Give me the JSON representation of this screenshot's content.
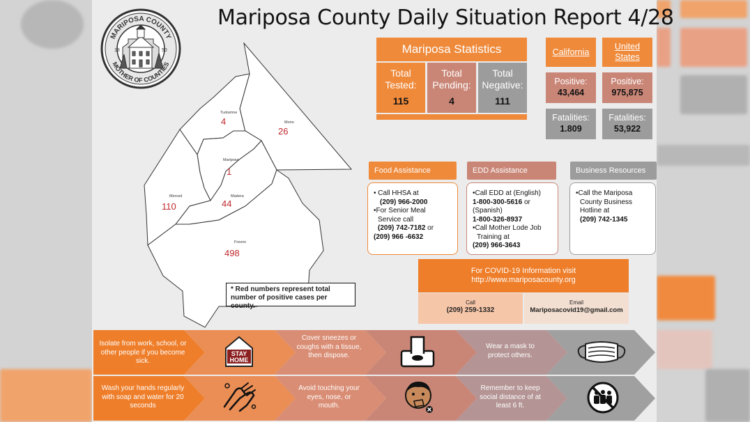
{
  "title": "Mariposa County Daily Situation Report 4/28",
  "seal": {
    "top_text": "MARIPOSA COUNTY",
    "bottom_text": "MOTHER OF COUNTIES",
    "year_left": "18",
    "year_right": "50"
  },
  "map": {
    "counties": [
      {
        "name": "Tuolumne",
        "count": "4"
      },
      {
        "name": "Mono",
        "count": "26"
      },
      {
        "name": "Mariposa",
        "count": "1"
      },
      {
        "name": "Merced",
        "count": "110"
      },
      {
        "name": "Madera",
        "count": "44"
      },
      {
        "name": "Fresno",
        "count": "498"
      }
    ],
    "note": "* Red numbers represent total number of  positive cases per county."
  },
  "mariposa_stats": {
    "heading": "Mariposa Statistics",
    "tested_label": "Total Tested:",
    "tested_value": "115",
    "pending_label": "Total Pending:",
    "pending_value": "4",
    "negative_label": "Total Negative:",
    "negative_value": "111"
  },
  "california": {
    "label": "California",
    "positive_label": "Positive:",
    "positive_value": "43,464",
    "fatalities_label": "Fatalities:",
    "fatalities_value": "1.809"
  },
  "united_states": {
    "label": "United States",
    "positive_label": "Positive:",
    "positive_value": "975,875",
    "fatalities_label": "Fatalities:",
    "fatalities_value": "53,922"
  },
  "food": {
    "heading": "Food Assistance",
    "line1": "• Call HHSA at",
    "phone1": "(209) 966-2000",
    "line2": "•For Senior Meal",
    "line3": "Service call",
    "phone2": "(209) 742-7182",
    "phone2_suffix": " or",
    "phone3": "(209) 966 -6632"
  },
  "edd": {
    "heading": "EDD Assistance",
    "line1": "•Call EDD at (English)",
    "phone1": "1-800-300-5616",
    "phone1_suffix": " or",
    "line2": "(Spanish)",
    "phone2": "1-800-326-8937",
    "line3": "•Call Mother Lode Job",
    "line4": "Training at",
    "phone3": "(209) 966-3643"
  },
  "business": {
    "heading": "Business Resources",
    "line1": "•Call the Mariposa",
    "line2": "County Business",
    "line3": "Hotline at",
    "phone": "(209) 742-1345"
  },
  "covid_info": {
    "heading": "For COVID-19 Information visit",
    "url": "http://www.mariposacounty.org",
    "call_label": "Call",
    "call_value": "(209) 259-1332",
    "email_label": "Email",
    "email_value": "Mariposacovid19@gmail.com"
  },
  "tips": {
    "isolate": "Isolate from work, school, or other people if you become sick.",
    "stay_home_1": "STAY",
    "stay_home_2": "HOME",
    "cover": "Cover sneezes or coughs with a tissue, then dispose.",
    "mask": "Wear a mask to protect others.",
    "wash": "Wash your hands regularly with soap and water for 20 seconds",
    "avoid": "Avoid touching your eyes, nose, or mouth.",
    "distance": "Remember to keep social distance of at least 6 ft."
  },
  "colors": {
    "orange": "#ef8a3b",
    "rose": "#c98677",
    "gray": "#9c9c9c",
    "count_red": "#c0282d"
  }
}
